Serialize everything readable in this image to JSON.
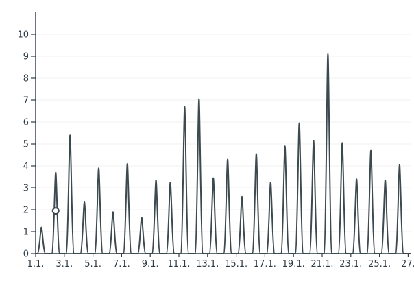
{
  "chart_data": {
    "type": "line",
    "title": "",
    "xlabel": "",
    "ylabel": "",
    "grid": true,
    "legend": "none",
    "ylim": [
      0,
      11
    ],
    "yticks": [
      0,
      1,
      2,
      3,
      4,
      5,
      6,
      7,
      8,
      9,
      10
    ],
    "xticks": [
      "1.1.",
      "3.1.",
      "5.1.",
      "7.1.",
      "9.1.",
      "11.1.",
      "13.1.",
      "15.1.",
      "17.1.",
      "19.1.",
      "21.1.",
      "23.1.",
      "25.1.",
      "27."
    ],
    "colors": {
      "series": "#3c4a50",
      "axis": "#2f3b45",
      "grid": "#f2f2f2"
    },
    "series": [
      {
        "peaks": [
          {
            "day": 1.4,
            "value": 1.2
          },
          {
            "day": 2.4,
            "value": 3.7
          },
          {
            "day": 3.4,
            "value": 5.4
          },
          {
            "day": 4.4,
            "value": 2.35
          },
          {
            "day": 5.4,
            "value": 3.9
          },
          {
            "day": 6.4,
            "value": 1.9
          },
          {
            "day": 7.4,
            "value": 4.1
          },
          {
            "day": 8.4,
            "value": 1.65
          },
          {
            "day": 9.4,
            "value": 3.35
          },
          {
            "day": 10.4,
            "value": 3.25
          },
          {
            "day": 11.4,
            "value": 6.7
          },
          {
            "day": 12.4,
            "value": 7.05
          },
          {
            "day": 13.4,
            "value": 3.45
          },
          {
            "day": 14.4,
            "value": 4.3
          },
          {
            "day": 15.4,
            "value": 2.6
          },
          {
            "day": 16.4,
            "value": 4.55
          },
          {
            "day": 17.4,
            "value": 3.25
          },
          {
            "day": 18.4,
            "value": 4.9
          },
          {
            "day": 19.4,
            "value": 5.95
          },
          {
            "day": 20.4,
            "value": 5.15
          },
          {
            "day": 21.4,
            "value": 9.1
          },
          {
            "day": 22.4,
            "value": 5.05
          },
          {
            "day": 23.4,
            "value": 3.4
          },
          {
            "day": 24.4,
            "value": 4.7
          },
          {
            "day": 25.4,
            "value": 3.35
          },
          {
            "day": 26.4,
            "value": 4.05
          }
        ]
      }
    ],
    "highlight_point": {
      "day": 2.4,
      "value": 1.95
    }
  }
}
